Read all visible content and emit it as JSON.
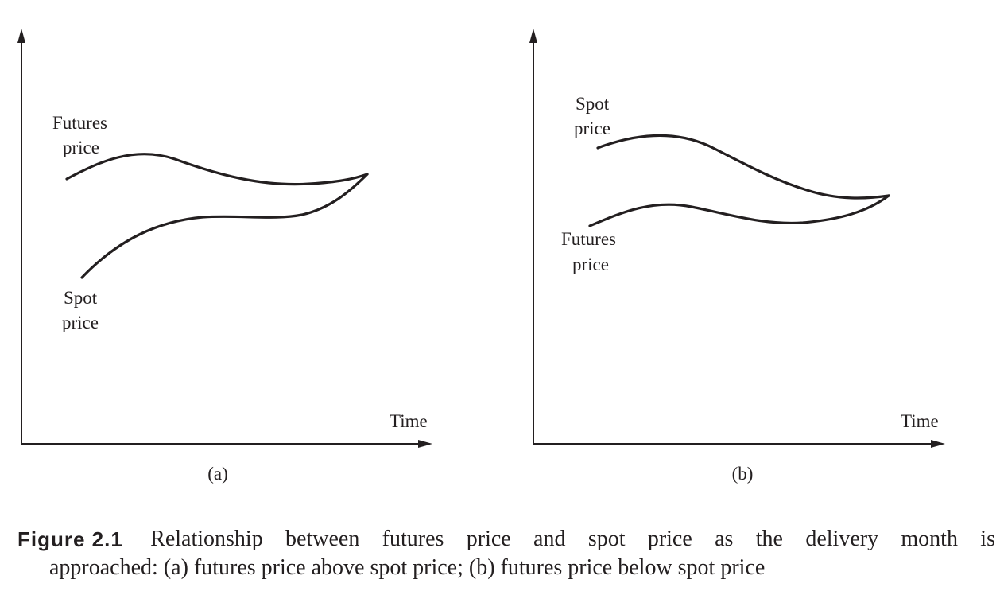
{
  "panels": [
    {
      "id": "a",
      "panel_label": "(a)",
      "x_axis_label": "Time",
      "upper_curve_label": [
        "Futures",
        "price"
      ],
      "lower_curve_label": [
        "Spot",
        "price"
      ],
      "relationship": "futures price above spot price, converging at delivery"
    },
    {
      "id": "b",
      "panel_label": "(b)",
      "x_axis_label": "Time",
      "upper_curve_label": [
        "Spot",
        "price"
      ],
      "lower_curve_label": [
        "Futures",
        "price"
      ],
      "relationship": "futures price below spot price, converging at delivery"
    }
  ],
  "caption": {
    "figure_label": "Figure 2.1",
    "line1_words": [
      "Relationship",
      "between",
      "futures",
      "price",
      "and",
      "spot",
      "price",
      "as",
      "the",
      "delivery",
      "month",
      "is"
    ],
    "line2": "approached: (a) futures price above spot price; (b) futures price below spot price"
  },
  "colors": {
    "ink": "#231f20",
    "background": "#ffffff"
  }
}
